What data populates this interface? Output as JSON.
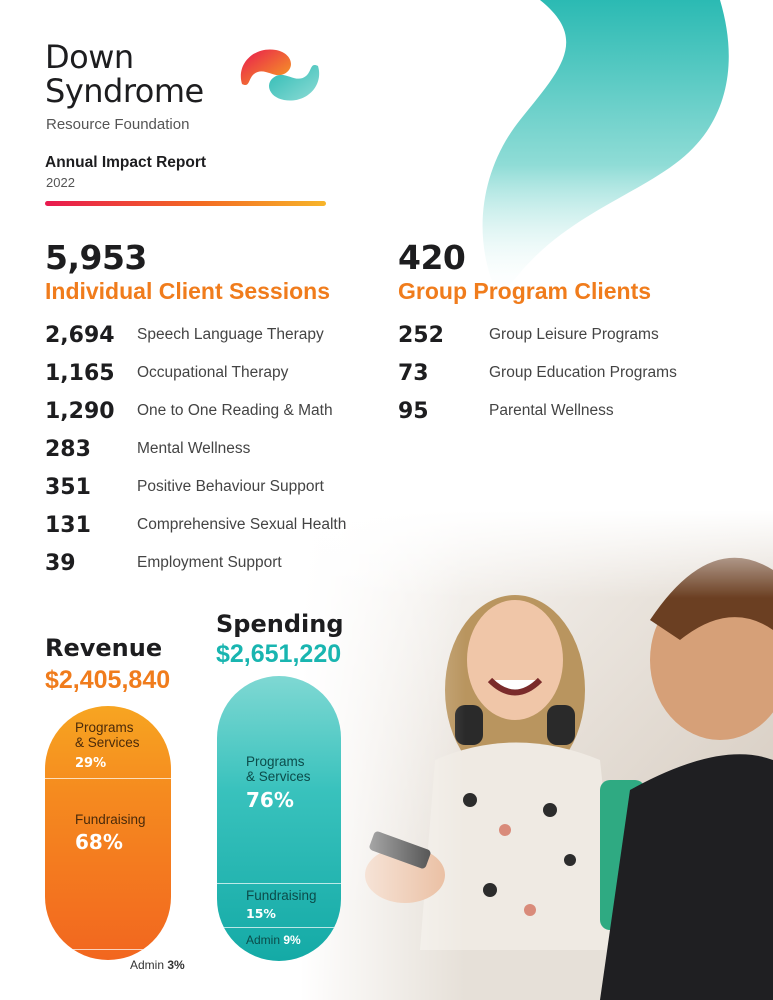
{
  "organization": {
    "name_line1": "Down",
    "name_line2": "Syndrome",
    "subtitle": "Resource Foundation"
  },
  "report": {
    "title": "Annual Impact Report",
    "year": "2022"
  },
  "individual": {
    "total": "5,953",
    "heading": "Individual Client Sessions",
    "items": [
      {
        "value": "2,694",
        "label": "Speech Language Therapy"
      },
      {
        "value": "1,165",
        "label": "Occupational Therapy"
      },
      {
        "value": "1,290",
        "label": "One to One Reading & Math"
      },
      {
        "value": "283",
        "label": "Mental Wellness"
      },
      {
        "value": "351",
        "label": "Positive Behaviour Support"
      },
      {
        "value": "131",
        "label": "Comprehensive Sexual Health"
      },
      {
        "value": "39",
        "label": "Employment Support"
      }
    ]
  },
  "group": {
    "total": "420",
    "heading": "Group Program Clients",
    "items": [
      {
        "value": "252",
        "label": "Group Leisure Programs"
      },
      {
        "value": "73",
        "label": "Group Education Programs"
      },
      {
        "value": "95",
        "label": "Parental Wellness"
      }
    ]
  },
  "revenue": {
    "heading": "Revenue",
    "amount": "$2,405,840",
    "segments": {
      "programs_label_1": "Programs",
      "programs_label_2": "& Services",
      "programs_pct": "29%",
      "fundraising_label": "Fundraising",
      "fundraising_pct": "68%",
      "admin_label": "Admin",
      "admin_pct": "3%"
    }
  },
  "spending": {
    "heading": "Spending",
    "amount": "$2,651,220",
    "segments": {
      "programs_label_1": "Programs",
      "programs_label_2": "& Services",
      "programs_pct": "76%",
      "fundraising_label": "Fundraising",
      "fundraising_pct": "15%",
      "admin_label": "Admin",
      "admin_pct": "9%"
    }
  },
  "colors": {
    "accent_orange": "#f07c1c",
    "accent_teal": "#19b5b0",
    "text_dark": "#1d1d1f"
  }
}
